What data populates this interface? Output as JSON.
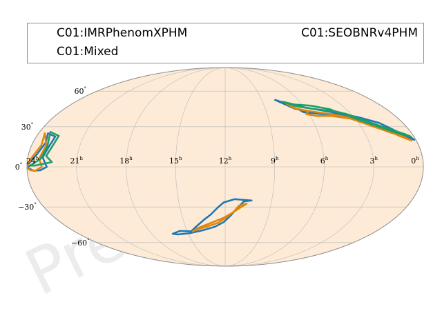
{
  "watermark": "Preliminary",
  "legend": {
    "entries": [
      "C01:IMRPhenomXPHM",
      "C01:SEOBNRv4PHM",
      "C01:Mixed"
    ]
  },
  "colors": {
    "sky_fill": "#fdebd7",
    "frame": "#8c8c8c",
    "grid": "#b9b9b9",
    "series": [
      "#1f77b4",
      "#e1860d",
      "#1a9e6a"
    ]
  },
  "chart_data": {
    "type": "line",
    "projection": "mollweide",
    "x_axis": {
      "quantity": "right ascension",
      "unit": "h",
      "direction": "decreasing-right",
      "range": [
        24,
        0
      ]
    },
    "y_axis": {
      "quantity": "declination",
      "unit": "deg",
      "range": [
        -90,
        90
      ]
    },
    "grid": true,
    "ra_ticks": [
      {
        "label": "24",
        "sup": "h",
        "value": 24
      },
      {
        "label": "21",
        "sup": "h",
        "value": 21
      },
      {
        "label": "18",
        "sup": "h",
        "value": 18
      },
      {
        "label": "15",
        "sup": "h",
        "value": 15
      },
      {
        "label": "12",
        "sup": "h",
        "value": 12
      },
      {
        "label": "9",
        "sup": "h",
        "value": 9
      },
      {
        "label": "6",
        "sup": "h",
        "value": 6
      },
      {
        "label": "3",
        "sup": "h",
        "value": 3
      },
      {
        "label": "0",
        "sup": "h",
        "value": 0
      }
    ],
    "dec_ticks": [
      {
        "label": "60",
        "sup": "°",
        "value": 60
      },
      {
        "label": "30",
        "sup": "°",
        "value": 30
      },
      {
        "label": "0",
        "sup": "°",
        "value": 0
      },
      {
        "label": "−30",
        "sup": "°",
        "value": -30
      },
      {
        "label": "−60",
        "sup": "°",
        "value": -60
      }
    ],
    "series": [
      {
        "name": "C01:IMRPhenomXPHM",
        "contours": [
          [
            [
              10.3,
              -25.0
            ],
            [
              10.8,
              -25.8
            ],
            [
              11.2,
              -31.0
            ],
            [
              11.6,
              -36.5
            ],
            [
              12.1,
              -42.0
            ],
            [
              12.8,
              -46.0
            ],
            [
              13.8,
              -49.0
            ],
            [
              14.9,
              -51.5
            ],
            [
              15.9,
              -52.5
            ],
            [
              16.3,
              -52.0
            ],
            [
              15.6,
              -49.5
            ],
            [
              14.7,
              -49.8
            ],
            [
              14.1,
              -45.0
            ],
            [
              13.5,
              -40.0
            ],
            [
              13.0,
              -36.0
            ],
            [
              12.5,
              -30.5
            ],
            [
              12.1,
              -26.5
            ],
            [
              11.4,
              -24.0
            ],
            [
              10.3,
              -25.0
            ]
          ],
          [
            [
              23.4,
              25.0
            ],
            [
              22.8,
              22.5
            ],
            [
              22.9,
              15.0
            ],
            [
              23.1,
              7.0
            ],
            [
              22.8,
              0.0
            ],
            [
              23.2,
              -2.5
            ],
            [
              23.6,
              -2.8
            ],
            [
              24.0,
              -0.5
            ],
            [
              23.8,
              1.0
            ],
            [
              24.0,
              1.0
            ],
            [
              23.5,
              9.0
            ],
            [
              23.2,
              18.0
            ],
            [
              23.4,
              25.0
            ]
          ],
          [
            [
              7.9,
              52.0
            ],
            [
              6.9,
              47.5
            ],
            [
              5.5,
              44.5
            ],
            [
              4.0,
              41.0
            ],
            [
              3.2,
              37.0
            ],
            [
              2.2,
              31.0
            ],
            [
              1.3,
              25.5
            ],
            [
              0.5,
              22.5
            ],
            [
              0.1,
              20.0
            ],
            [
              0.2,
              21.5
            ],
            [
              0.7,
              25.0
            ],
            [
              1.6,
              33.0
            ],
            [
              2.8,
              38.0
            ],
            [
              4.2,
              40.0
            ],
            [
              5.0,
              40.0
            ],
            [
              6.3,
              41.5
            ],
            [
              6.5,
              43.5
            ],
            [
              5.9,
              42.0
            ],
            [
              6.8,
              44.5
            ],
            [
              7.9,
              52.0
            ]
          ]
        ]
      },
      {
        "name": "C01:SEOBNRv4PHM",
        "contours": [
          [
            [
              10.6,
              -27.5
            ],
            [
              11.1,
              -29.0
            ],
            [
              11.4,
              -33.5
            ],
            [
              11.9,
              -38.0
            ],
            [
              12.5,
              -42.5
            ],
            [
              13.3,
              -45.5
            ],
            [
              14.2,
              -48.3
            ],
            [
              14.6,
              -50.0
            ],
            [
              14.1,
              -47.0
            ],
            [
              13.1,
              -43.0
            ],
            [
              12.1,
              -38.5
            ],
            [
              11.5,
              -34.5
            ],
            [
              11.0,
              -30.5
            ],
            [
              10.6,
              -27.5
            ]
          ],
          [
            [
              23.6,
              25.0
            ],
            [
              23.1,
              16.0
            ],
            [
              23.3,
              6.0
            ],
            [
              23.1,
              0.0
            ],
            [
              23.5,
              -2.8
            ],
            [
              23.8,
              -2.5
            ],
            [
              24.0,
              -0.5
            ],
            [
              23.8,
              6.0
            ],
            [
              23.4,
              16.0
            ],
            [
              23.6,
              25.0
            ]
          ],
          [
            [
              7.2,
              49.0
            ],
            [
              6.6,
              44.0
            ],
            [
              5.3,
              41.5
            ],
            [
              4.4,
              40.0
            ],
            [
              3.6,
              38.0
            ],
            [
              2.5,
              32.0
            ],
            [
              1.5,
              26.5
            ],
            [
              0.6,
              22.0
            ],
            [
              0.3,
              19.5
            ],
            [
              0.9,
              23.0
            ],
            [
              1.7,
              30.0
            ],
            [
              2.8,
              35.5
            ],
            [
              4.5,
              38.5
            ],
            [
              5.5,
              38.5
            ],
            [
              6.2,
              40.0
            ],
            [
              5.9,
              42.5
            ],
            [
              6.8,
              45.0
            ],
            [
              7.2,
              49.0
            ]
          ]
        ]
      },
      {
        "name": "C01:Mixed",
        "contours": [
          [
            [
              23.3,
              26.0
            ],
            [
              22.6,
              23.0
            ],
            [
              22.7,
              15.0
            ],
            [
              22.9,
              8.0
            ],
            [
              22.5,
              3.5
            ],
            [
              23.5,
              1.0
            ],
            [
              23.8,
              1.0
            ],
            [
              23.2,
              6.0
            ],
            [
              23.0,
              15.0
            ],
            [
              23.3,
              26.0
            ]
          ],
          [
            [
              7.4,
              50.5
            ],
            [
              6.5,
              46.5
            ],
            [
              5.5,
              44.5
            ],
            [
              4.2,
              42.5
            ],
            [
              3.6,
              41.0
            ],
            [
              2.9,
              36.0
            ],
            [
              2.1,
              31.5
            ],
            [
              1.0,
              25.5
            ],
            [
              0.2,
              22.5
            ],
            [
              0.5,
              24.5
            ],
            [
              1.3,
              28.5
            ],
            [
              2.2,
              33.5
            ],
            [
              3.3,
              40.0
            ],
            [
              4.0,
              42.5
            ],
            [
              4.2,
              44.0
            ],
            [
              5.4,
              47.0
            ],
            [
              6.6,
              48.0
            ],
            [
              7.4,
              50.5
            ]
          ]
        ]
      }
    ]
  }
}
